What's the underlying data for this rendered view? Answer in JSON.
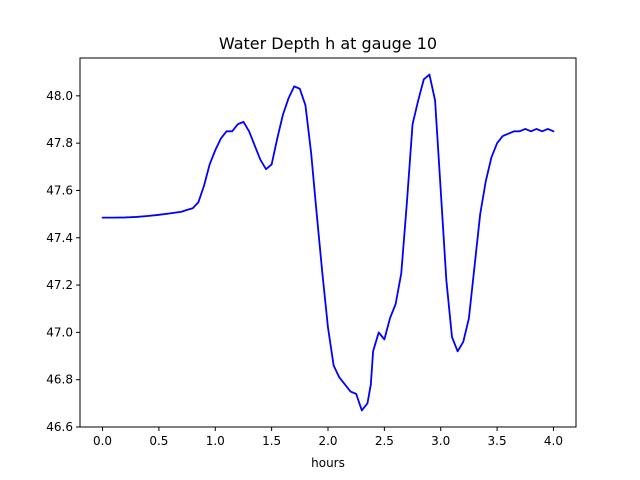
{
  "chart_data": {
    "type": "line",
    "title": "Water Depth h at gauge 10",
    "xlabel": "hours",
    "ylabel": "",
    "xlim": [
      -0.2,
      4.2
    ],
    "ylim": [
      46.6,
      48.16
    ],
    "x_ticks": [
      0.0,
      0.5,
      1.0,
      1.5,
      2.0,
      2.5,
      3.0,
      3.5,
      4.0
    ],
    "x_tick_labels": [
      "0.0",
      "0.5",
      "1.0",
      "1.5",
      "2.0",
      "2.5",
      "3.0",
      "3.5",
      "4.0"
    ],
    "y_ticks": [
      46.6,
      46.8,
      47.0,
      47.2,
      47.4,
      47.6,
      47.8,
      48.0
    ],
    "y_tick_labels": [
      "46.6",
      "46.8",
      "47.0",
      "47.2",
      "47.4",
      "47.6",
      "47.8",
      "48.0"
    ],
    "grid": false,
    "legend": "none",
    "series": [
      {
        "color": "#0000ff",
        "x": [
          0.0,
          0.1,
          0.2,
          0.3,
          0.4,
          0.5,
          0.6,
          0.7,
          0.75,
          0.8,
          0.85,
          0.9,
          0.95,
          1.0,
          1.05,
          1.1,
          1.15,
          1.2,
          1.25,
          1.3,
          1.35,
          1.4,
          1.45,
          1.5,
          1.55,
          1.6,
          1.65,
          1.7,
          1.75,
          1.8,
          1.85,
          1.9,
          1.95,
          2.0,
          2.05,
          2.1,
          2.15,
          2.2,
          2.25,
          2.3,
          2.35,
          2.38,
          2.4,
          2.45,
          2.5,
          2.55,
          2.6,
          2.65,
          2.7,
          2.75,
          2.8,
          2.85,
          2.9,
          2.95,
          3.0,
          3.05,
          3.1,
          3.15,
          3.2,
          3.25,
          3.3,
          3.35,
          3.4,
          3.45,
          3.5,
          3.55,
          3.6,
          3.65,
          3.7,
          3.75,
          3.8,
          3.85,
          3.9,
          3.95,
          4.0
        ],
        "y": [
          47.485,
          47.485,
          47.486,
          47.488,
          47.492,
          47.497,
          47.503,
          47.51,
          47.518,
          47.525,
          47.55,
          47.62,
          47.71,
          47.77,
          47.82,
          47.85,
          47.85,
          47.88,
          47.89,
          47.85,
          47.79,
          47.73,
          47.69,
          47.71,
          47.82,
          47.92,
          47.99,
          48.04,
          48.03,
          47.96,
          47.76,
          47.5,
          47.25,
          47.02,
          46.86,
          46.81,
          46.78,
          46.75,
          46.74,
          46.67,
          46.7,
          46.78,
          46.92,
          47.0,
          46.97,
          47.06,
          47.12,
          47.25,
          47.55,
          47.88,
          47.98,
          48.07,
          48.09,
          47.98,
          47.6,
          47.22,
          46.98,
          46.92,
          46.96,
          47.06,
          47.28,
          47.5,
          47.64,
          47.74,
          47.8,
          47.83,
          47.84,
          47.85,
          47.85,
          47.86,
          47.85,
          47.86,
          47.85,
          47.86,
          47.85
        ]
      }
    ]
  }
}
